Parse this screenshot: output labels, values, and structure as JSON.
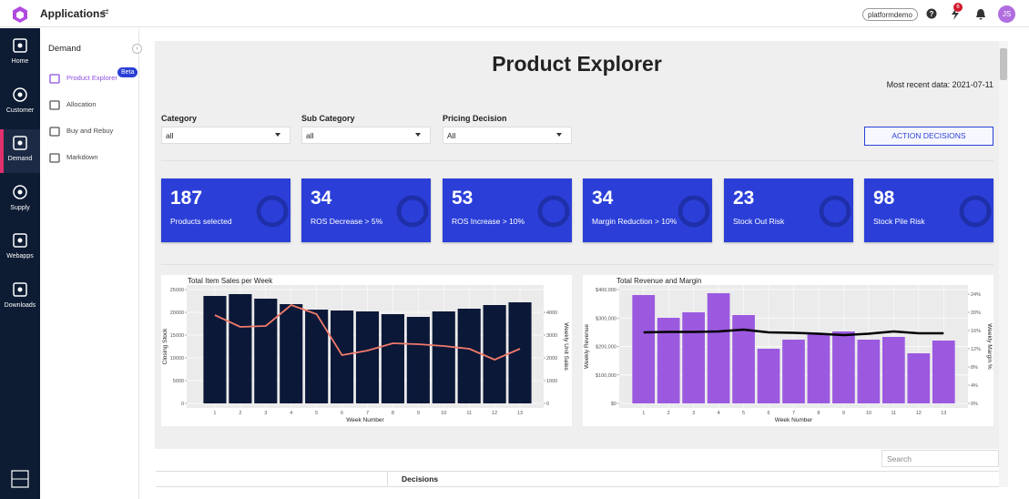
{
  "header": {
    "app_title": "Applications",
    "user_pill": "platformdemo",
    "notification_count": 6,
    "avatar": "JS"
  },
  "nav": [
    "Home",
    "Customer",
    "Demand",
    "Supply",
    "Webapps",
    "Downloads"
  ],
  "subnav": {
    "heading": "Demand",
    "items": [
      "Product Explorer",
      "Allocation",
      "Buy and Rebuy",
      "Markdown"
    ],
    "badge": "Beta"
  },
  "page": {
    "title": "Product Explorer",
    "recent_data": "Most recent data: 2021-07-11"
  },
  "filters": [
    {
      "label": "Category",
      "value": "all"
    },
    {
      "label": "Sub Category",
      "value": "all"
    },
    {
      "label": "Pricing Decision",
      "value": "All"
    }
  ],
  "action_button": "ACTION DECISIONS",
  "kpis": [
    {
      "value": 187,
      "label": "Products selected"
    },
    {
      "value": 34,
      "label": "ROS Decrease > 5%"
    },
    {
      "value": 53,
      "label": "ROS Increase > 10%"
    },
    {
      "value": 34,
      "label": "Margin Reduction > 10%"
    },
    {
      "value": 23,
      "label": "Stock Out Risk"
    },
    {
      "value": 98,
      "label": "Stock Pile Risk"
    }
  ],
  "charts": [
    {
      "type": "bar",
      "title": "Total Item Sales per Week",
      "x_label": "Week Number",
      "y_label": "Closing Stock",
      "y2_label": "Weekly Unit Sales",
      "categories": [
        "1",
        "2",
        "3",
        "4",
        "5",
        "6",
        "7",
        "8",
        "9",
        "10",
        "11",
        "12",
        "13"
      ],
      "series": [
        {
          "type": "bar",
          "color": "#0b1838",
          "values": [
            23600,
            24000,
            23000,
            21800,
            20600,
            20400,
            20200,
            19600,
            19000,
            20200,
            20800,
            21600,
            22200
          ]
        },
        {
          "type": "line",
          "axis": "y2",
          "color": "#f07a6a",
          "values": [
            3880,
            3360,
            3400,
            4320,
            3920,
            2120,
            2320,
            2640,
            2600,
            2520,
            2400,
            1920,
            2400
          ]
        }
      ],
      "ylim": [
        -1000,
        26000
      ],
      "yticks": [
        0,
        5000,
        10000,
        15000,
        20000,
        25000
      ],
      "y2lim": [
        -200,
        5200
      ],
      "y2ticks": [
        0,
        1000,
        2000,
        3000,
        4000
      ],
      "grid": true
    },
    {
      "type": "bar",
      "title": "Total Revenue and Margin",
      "x_label": "Week Number",
      "y_label": "Weekly Revenue",
      "y2_label": "Weekly Margin %",
      "categories": [
        "1",
        "2",
        "3",
        "4",
        "5",
        "6",
        "7",
        "8",
        "9",
        "10",
        "11",
        "12",
        "13"
      ],
      "series": [
        {
          "type": "bar",
          "color": "#9b59e0",
          "values": [
            380800,
            300800,
            320000,
            387200,
            310400,
            192000,
            224000,
            243200,
            252800,
            224000,
            233600,
            176000,
            220800
          ]
        },
        {
          "type": "line",
          "axis": "y2",
          "color": "#000000",
          "values": [
            15.6,
            15.7,
            15.7,
            15.8,
            16.2,
            15.6,
            15.5,
            15.3,
            15.0,
            15.3,
            15.8,
            15.4,
            15.4
          ]
        }
      ],
      "ylim": [
        -16000,
        416000
      ],
      "yticks": [
        {
          "value": 0,
          "label": "$0"
        },
        {
          "value": 100000,
          "label": "$100,000"
        },
        {
          "value": 200000,
          "label": "$200,000"
        },
        {
          "value": 300000,
          "label": "$300,000"
        },
        {
          "value": 400000,
          "label": "$400,000"
        }
      ],
      "y2lim": [
        -1,
        26
      ],
      "y2ticks": [
        {
          "value": 0,
          "label": "0%"
        },
        {
          "value": 4,
          "label": "4%"
        },
        {
          "value": 8,
          "label": "8%"
        },
        {
          "value": 12,
          "label": "12%"
        },
        {
          "value": 16,
          "label": "16%"
        },
        {
          "value": 20,
          "label": "20%"
        },
        {
          "value": 24,
          "label": "24%"
        }
      ],
      "grid": true
    }
  ],
  "search_placeholder": "Search",
  "table": {
    "columns": [
      "Decisions"
    ]
  }
}
